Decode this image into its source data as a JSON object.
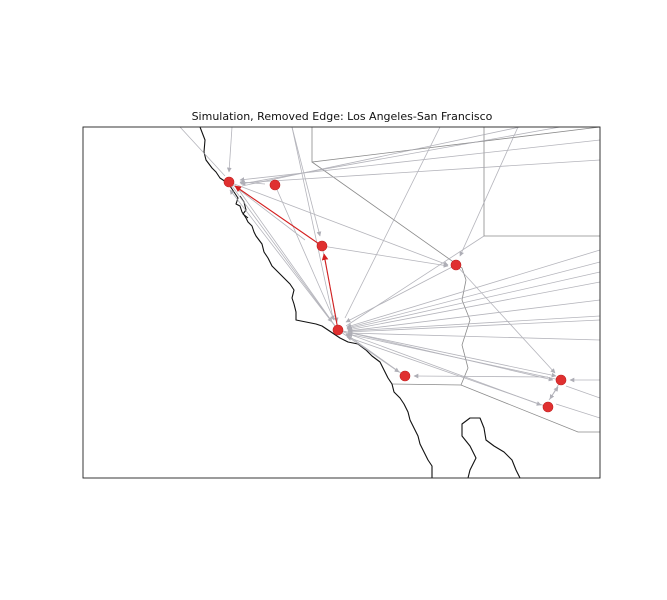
{
  "title": "Simulation, Removed Edge: Los Angeles-San Francisco",
  "colors": {
    "node": "#e03030",
    "highlight_edge": "#d42020",
    "edge": "#9a9aa4",
    "coastline": "#111111",
    "border": "#8a8a8a",
    "frame": "#222222"
  },
  "map_description_icons": [
    "coastline",
    "state-border",
    "country-border"
  ]
}
